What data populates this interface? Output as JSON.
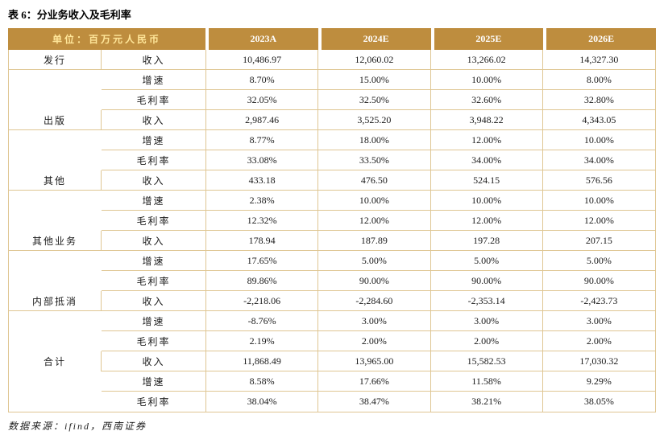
{
  "title": "表 6：分业务收入及毛利率",
  "source_note": "数据来源：ifind，西南证券",
  "colors": {
    "header_bg": "#BE8D3E",
    "header_text": "#FFFFFF",
    "unit_label_text": "#FFE699",
    "border": "#DFC693",
    "body_text": "#1A1A1A"
  },
  "chart_data": {
    "type": "table",
    "title": "分业务收入及毛利率",
    "unit_label": "单位：百万元人民币",
    "columns": [
      "2023A",
      "2024E",
      "2025E",
      "2026E"
    ],
    "row_metrics": [
      "收入",
      "增速",
      "毛利率"
    ],
    "groups": [
      {
        "name": "发行",
        "rows": [
          {
            "metric": "收入",
            "values": [
              "10,486.97",
              "12,060.02",
              "13,266.02",
              "14,327.30"
            ]
          },
          {
            "metric": "增速",
            "values": [
              "8.70%",
              "15.00%",
              "10.00%",
              "8.00%"
            ]
          },
          {
            "metric": "毛利率",
            "values": [
              "32.05%",
              "32.50%",
              "32.60%",
              "32.80%"
            ]
          }
        ]
      },
      {
        "name": "出版",
        "rows": [
          {
            "metric": "收入",
            "values": [
              "2,987.46",
              "3,525.20",
              "3,948.22",
              "4,343.05"
            ]
          },
          {
            "metric": "增速",
            "values": [
              "8.77%",
              "18.00%",
              "12.00%",
              "10.00%"
            ]
          },
          {
            "metric": "毛利率",
            "values": [
              "33.08%",
              "33.50%",
              "34.00%",
              "34.00%"
            ]
          }
        ]
      },
      {
        "name": "其他",
        "rows": [
          {
            "metric": "收入",
            "values": [
              "433.18",
              "476.50",
              "524.15",
              "576.56"
            ]
          },
          {
            "metric": "增速",
            "values": [
              "2.38%",
              "10.00%",
              "10.00%",
              "10.00%"
            ]
          },
          {
            "metric": "毛利率",
            "values": [
              "12.32%",
              "12.00%",
              "12.00%",
              "12.00%"
            ]
          }
        ]
      },
      {
        "name": "其他业务",
        "rows": [
          {
            "metric": "收入",
            "values": [
              "178.94",
              "187.89",
              "197.28",
              "207.15"
            ]
          },
          {
            "metric": "增速",
            "values": [
              "17.65%",
              "5.00%",
              "5.00%",
              "5.00%"
            ]
          },
          {
            "metric": "毛利率",
            "values": [
              "89.86%",
              "90.00%",
              "90.00%",
              "90.00%"
            ]
          }
        ]
      },
      {
        "name": "内部抵消",
        "rows": [
          {
            "metric": "收入",
            "values": [
              "-2,218.06",
              "-2,284.60",
              "-2,353.14",
              "-2,423.73"
            ]
          },
          {
            "metric": "增速",
            "values": [
              "-8.76%",
              "3.00%",
              "3.00%",
              "3.00%"
            ]
          },
          {
            "metric": "毛利率",
            "values": [
              "2.19%",
              "2.00%",
              "2.00%",
              "2.00%"
            ]
          }
        ]
      },
      {
        "name": "合计",
        "rows": [
          {
            "metric": "收入",
            "values": [
              "11,868.49",
              "13,965.00",
              "15,582.53",
              "17,030.32"
            ]
          },
          {
            "metric": "增速",
            "values": [
              "8.58%",
              "17.66%",
              "11.58%",
              "9.29%"
            ]
          },
          {
            "metric": "毛利率",
            "values": [
              "38.04%",
              "38.47%",
              "38.21%",
              "38.05%"
            ]
          }
        ]
      }
    ]
  }
}
